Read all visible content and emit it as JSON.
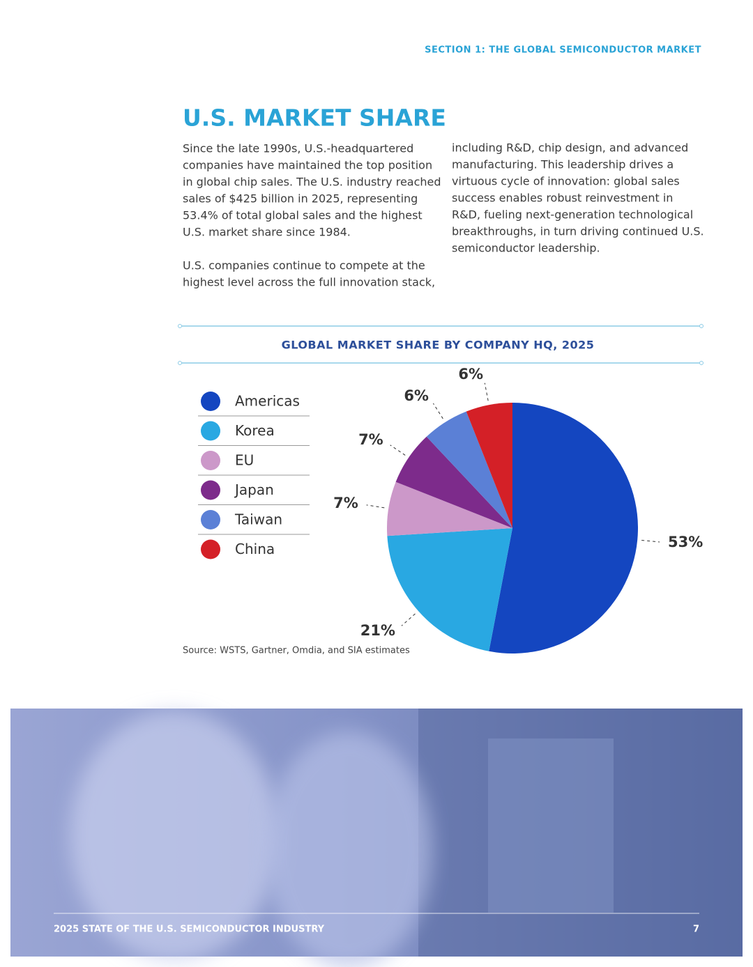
{
  "header": {
    "section": "SECTION 1:  THE GLOBAL SEMICONDUCTOR MARKET"
  },
  "title": "U.S. MARKET SHARE",
  "body": {
    "paragraphs": [
      {
        "lines": [
          "Since the late 1990s, U.S.-headquartered",
          "companies have maintained the top position",
          "in global chip sales. The U.S. industry reached",
          "sales of $425 billion in 2025, representing",
          "53.4% of total global sales and the highest",
          "U.S. market share since 1984."
        ]
      },
      {
        "lines": [
          "U.S. companies continue to compete at the",
          "highest level across the full innovation stack,",
          "including R&D, chip design, and advanced",
          "manufacturing. This leadership drives a",
          "virtuous cycle of innovation: global sales",
          "success enables robust reinvestment in",
          "R&D, fueling next-generation technological",
          "breakthroughs, in turn driving continued U.S.",
          "semiconductor leadership."
        ]
      }
    ]
  },
  "chart_data": {
    "type": "pie",
    "title": "GLOBAL MARKET SHARE BY COMPANY HQ, 2025",
    "categories": [
      "Americas",
      "Korea",
      "EU",
      "Japan",
      "Taiwan",
      "China"
    ],
    "values": [
      53,
      21,
      7,
      7,
      6,
      6
    ],
    "value_labels": [
      "53%",
      "21%",
      "7%",
      "7%",
      "6%",
      "6%"
    ],
    "colors": [
      "#1446c0",
      "#29a8e2",
      "#cc98c9",
      "#7d2b8b",
      "#5b80d6",
      "#d42027"
    ],
    "legend": "left",
    "source": "Source: WSTS, Gartner, Omdia, and SIA estimates"
  },
  "footer": {
    "title": "2025 STATE OF THE U.S. SEMICONDUCTOR INDUSTRY",
    "page": "7"
  }
}
